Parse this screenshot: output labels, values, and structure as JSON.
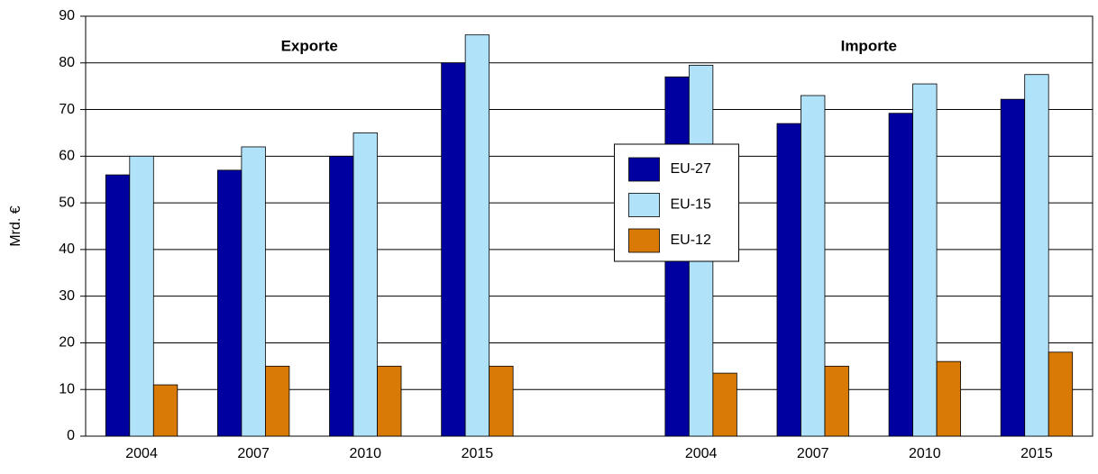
{
  "chart_data": {
    "type": "bar",
    "ylabel": "Mrd. €",
    "annotations": [
      "Exporte",
      "Importe"
    ],
    "categories": [
      "2004",
      "2007",
      "2010",
      "2015",
      null,
      "2004",
      "2007",
      "2010",
      "2015"
    ],
    "series": [
      {
        "name": "EU-27",
        "color": "#0000a0",
        "values": [
          56,
          57,
          60,
          80,
          null,
          77,
          67,
          69.2,
          72.2
        ]
      },
      {
        "name": "EU-15",
        "color": "#b0e2fa",
        "values": [
          60,
          62,
          65,
          86,
          null,
          79.5,
          73,
          75.5,
          77.5
        ]
      },
      {
        "name": "EU-12",
        "color": "#d97a06",
        "values": [
          11,
          15,
          15,
          15,
          null,
          13.5,
          15,
          16,
          18
        ]
      }
    ],
    "ylim": [
      0,
      90
    ],
    "yticks": [
      0,
      10,
      20,
      30,
      40,
      50,
      60,
      70,
      80,
      90
    ],
    "grid": true,
    "legend": "center"
  }
}
